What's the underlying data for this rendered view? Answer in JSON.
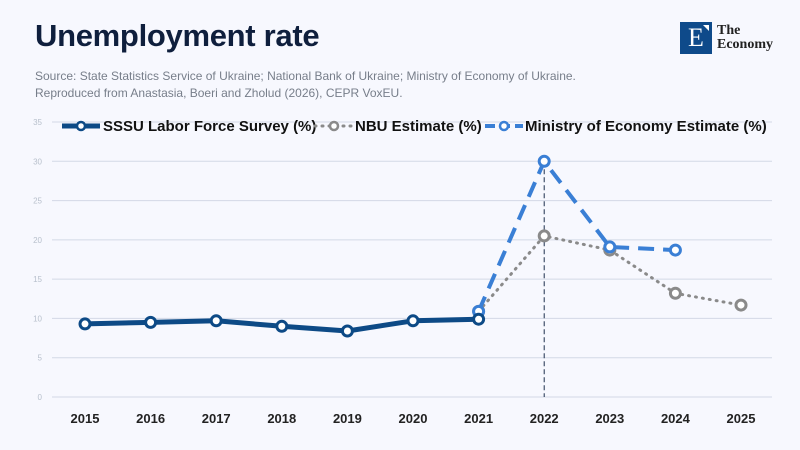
{
  "title": "Unemployment rate",
  "source_lines": [
    "Source: State Statistics Service of Ukraine; National Bank of Ukraine; Ministry of Economy of Ukraine.",
    "Reproduced from Anastasia, Boeri and Zholud (2026), CEPR VoxEU."
  ],
  "logo": {
    "letter": "E",
    "line1": "The",
    "line2": "Economy"
  },
  "chart_data": {
    "type": "line",
    "title": "Unemployment rate",
    "x": [
      "2015",
      "2016",
      "2017",
      "2018",
      "2019",
      "2020",
      "2021",
      "2022",
      "2023",
      "2024",
      "2025"
    ],
    "ylim": [
      0,
      35
    ],
    "yticks": [
      0,
      5,
      10,
      15,
      20,
      25,
      30,
      35
    ],
    "grid": true,
    "legend_position": "top",
    "annotation": "vertical dashed line at 2022",
    "series": [
      {
        "name": "SSSU Labor Force Survey (%)",
        "color": "#0d4a86",
        "style": "solid",
        "values": [
          9.3,
          9.5,
          9.7,
          9.0,
          8.4,
          9.7,
          9.9,
          null,
          null,
          null,
          null
        ]
      },
      {
        "name": "NBU Estimate (%)",
        "color": "#8a8a8a",
        "style": "dotted",
        "values": [
          null,
          null,
          null,
          null,
          null,
          null,
          10.9,
          20.5,
          18.7,
          13.2,
          11.7
        ]
      },
      {
        "name": "Ministry of Economy Estimate (%)",
        "color": "#3a7fd5",
        "style": "dashed",
        "values": [
          null,
          null,
          null,
          null,
          null,
          null,
          10.9,
          30.0,
          19.1,
          18.7,
          null
        ]
      }
    ]
  }
}
